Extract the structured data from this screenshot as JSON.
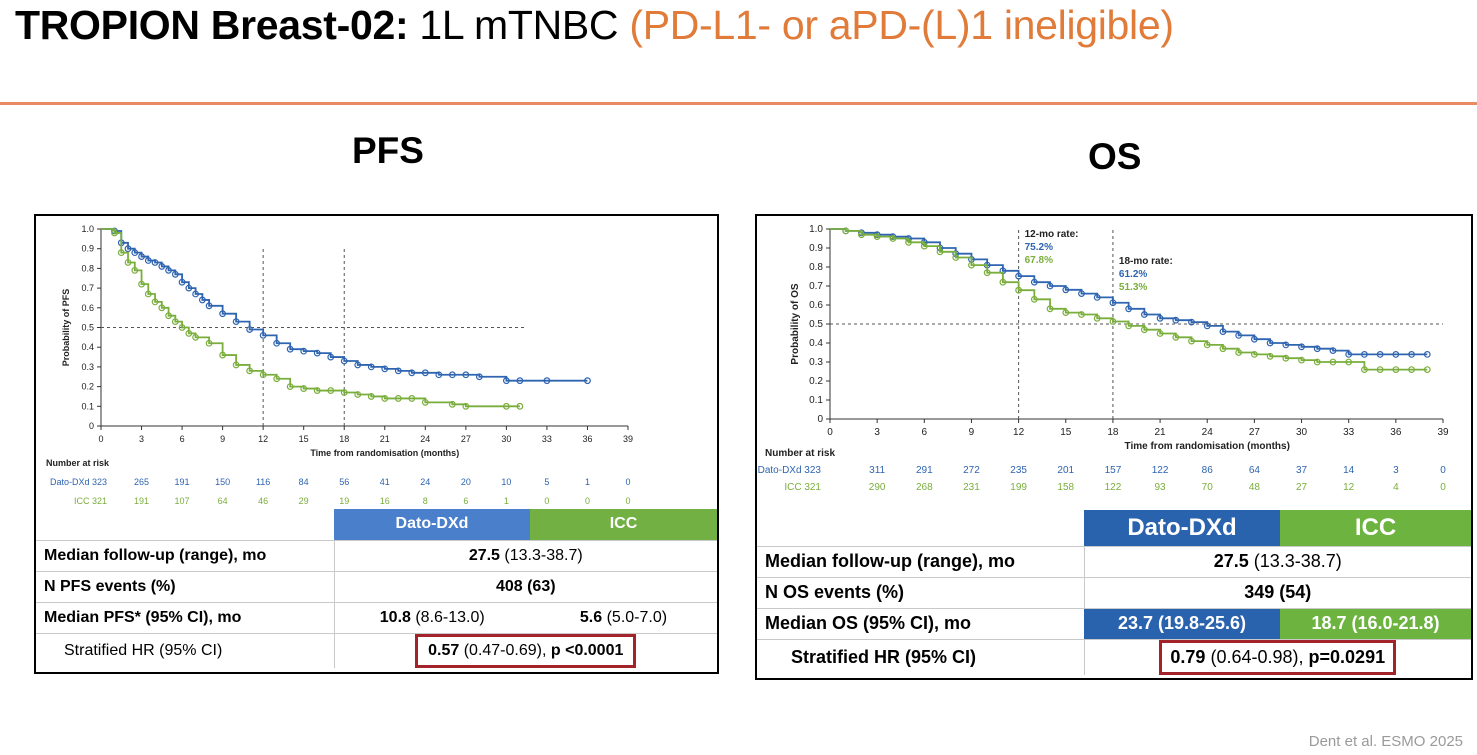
{
  "slide": {
    "title_bold": "TROPION Breast-02:",
    "title_regular": "1L mTNBC",
    "title_highlight": "(PD-L1- or aPD-(L)1 ineligible)",
    "highlight_color": "#e07b39",
    "citation": "Dent et al. ESMO 2025"
  },
  "colors": {
    "dato": "#2e64b0",
    "icc": "#7aae3c",
    "dato_header": "#4a7fcb",
    "icc_header": "#72b043",
    "os_dato_header": "#2a63ad",
    "os_icc_header": "#6cb33f",
    "hr_box": "#a3232b"
  },
  "pfs": {
    "panel_title": "PFS",
    "table": {
      "col_dato": "Dato-DXd",
      "col_icc": "ICC",
      "rows": [
        {
          "label": "Median follow-up (range), mo",
          "value_bold": "27.5",
          "value_rest": " (13.3-38.7)"
        },
        {
          "label": "N PFS events (%)",
          "value_bold": "408 (63)"
        },
        {
          "label": "Median PFS* (95% CI), mo",
          "dato_bold": "10.8",
          "dato_rest": " (8.6-13.0)",
          "icc_bold": "5.6",
          "icc_rest": " (5.0-7.0)"
        },
        {
          "label": "Stratified HR (95% CI)",
          "hr_bold": "0.57",
          "hr_rest": " (0.47-0.69),",
          "p_value": "p <0.0001"
        }
      ]
    }
  },
  "os": {
    "panel_title": "OS",
    "table": {
      "col_dato": "Dato-DXd",
      "col_icc": "ICC",
      "rows": [
        {
          "label": "Median follow-up (range), mo",
          "value_bold": "27.5",
          "value_rest": " (13.3-38.7)"
        },
        {
          "label": "N OS events (%)",
          "value_bold": "349 (54)"
        },
        {
          "label": "Median OS (95% CI), mo",
          "dato": "23.7 (19.8-25.6)",
          "icc": "18.7 (16.0-21.8)"
        },
        {
          "label": "Stratified HR (95% CI)",
          "hr_bold": "0.79",
          "hr_rest": " (0.64-0.98),",
          "p_value": "p=0.0291"
        }
      ]
    }
  },
  "chart_data": [
    {
      "type": "line",
      "id": "pfs",
      "title": "",
      "xlabel": "Time from randomisation (months)",
      "ylabel": "Probability of PFS",
      "xlim": [
        0,
        39
      ],
      "ylim": [
        0,
        1
      ],
      "x_ticks": [
        "0",
        "3",
        "6",
        "9",
        "12",
        "15",
        "18",
        "21",
        "24",
        "27",
        "30",
        "33",
        "36",
        "39"
      ],
      "y_ticks": [
        "0",
        "0.1",
        "0.2",
        "0.3",
        "0.4",
        "0.5",
        "0.6",
        "0.7",
        "0.8",
        "0.9",
        "1.0"
      ],
      "reference_y": 0.5,
      "reference_x": [
        12,
        18
      ],
      "series": [
        {
          "name": "Dato-DXd",
          "color": "#2e64b0",
          "x": [
            0,
            1,
            1.5,
            2,
            2.5,
            3,
            3.5,
            4,
            4.5,
            5,
            5.5,
            6,
            6.5,
            7,
            7.5,
            8,
            9,
            10,
            11,
            12,
            13,
            14,
            15,
            16,
            17,
            18,
            19,
            20,
            21,
            22,
            23,
            24,
            25,
            26,
            27,
            28,
            30,
            31,
            33,
            36
          ],
          "y": [
            1.0,
            0.99,
            0.93,
            0.9,
            0.88,
            0.86,
            0.84,
            0.83,
            0.81,
            0.79,
            0.77,
            0.73,
            0.7,
            0.67,
            0.64,
            0.61,
            0.57,
            0.53,
            0.49,
            0.46,
            0.42,
            0.39,
            0.38,
            0.37,
            0.35,
            0.33,
            0.31,
            0.3,
            0.29,
            0.28,
            0.27,
            0.27,
            0.26,
            0.26,
            0.26,
            0.25,
            0.23,
            0.23,
            0.23,
            0.23
          ]
        },
        {
          "name": "ICC",
          "color": "#7aae3c",
          "x": [
            0,
            1,
            1.5,
            2,
            2.5,
            3,
            3.5,
            4,
            4.5,
            5,
            5.5,
            6,
            6.5,
            7,
            8,
            9,
            10,
            11,
            12,
            13,
            14,
            15,
            16,
            17,
            18,
            19,
            20,
            21,
            22,
            23,
            24,
            26,
            27,
            30,
            31
          ],
          "y": [
            1.0,
            0.98,
            0.88,
            0.83,
            0.79,
            0.72,
            0.67,
            0.63,
            0.6,
            0.56,
            0.53,
            0.5,
            0.47,
            0.45,
            0.42,
            0.36,
            0.31,
            0.28,
            0.26,
            0.24,
            0.2,
            0.19,
            0.18,
            0.18,
            0.17,
            0.16,
            0.15,
            0.14,
            0.14,
            0.14,
            0.12,
            0.11,
            0.1,
            0.1,
            0.1
          ]
        }
      ],
      "risk_table": {
        "heading": "Number at risk",
        "rows": [
          {
            "name": "Dato-DXd",
            "n": "323",
            "values": [
              "265",
              "191",
              "150",
              "116",
              "84",
              "56",
              "41",
              "24",
              "20",
              "10",
              "5",
              "1",
              "0"
            ],
            "color": "#2e64b0"
          },
          {
            "name": "ICC",
            "n": "321",
            "values": [
              "191",
              "107",
              "64",
              "46",
              "29",
              "19",
              "16",
              "8",
              "6",
              "1",
              "0",
              "0",
              "0"
            ],
            "color": "#7aae3c"
          }
        ]
      }
    },
    {
      "type": "line",
      "id": "os",
      "title": "",
      "xlabel": "Time from randomisation (months)",
      "ylabel": "Probability of OS",
      "xlim": [
        0,
        39
      ],
      "ylim": [
        0,
        1
      ],
      "x_ticks": [
        "0",
        "3",
        "6",
        "9",
        "12",
        "15",
        "18",
        "21",
        "24",
        "27",
        "30",
        "33",
        "36",
        "39"
      ],
      "y_ticks": [
        "0",
        "0.1",
        "0.2",
        "0.3",
        "0.4",
        "0.5",
        "0.6",
        "0.7",
        "0.8",
        "0.9",
        "1.0"
      ],
      "reference_y": 0.5,
      "reference_x": [
        12,
        18
      ],
      "annotations": [
        {
          "x": 12,
          "title": "12-mo rate:",
          "dato": "75.2%",
          "icc": "67.8%"
        },
        {
          "x": 18,
          "title": "18-mo rate:",
          "dato": "61.2%",
          "icc": "51.3%"
        }
      ],
      "series": [
        {
          "name": "Dato-DXd",
          "color": "#2e64b0",
          "x": [
            0,
            1,
            2,
            3,
            4,
            5,
            6,
            7,
            8,
            9,
            10,
            11,
            12,
            13,
            14,
            15,
            16,
            17,
            18,
            19,
            20,
            21,
            22,
            23,
            24,
            25,
            26,
            27,
            28,
            29,
            30,
            31,
            32,
            33,
            34,
            35,
            36,
            37,
            38
          ],
          "y": [
            1.0,
            0.99,
            0.98,
            0.97,
            0.96,
            0.95,
            0.93,
            0.9,
            0.87,
            0.84,
            0.81,
            0.78,
            0.752,
            0.72,
            0.7,
            0.68,
            0.66,
            0.64,
            0.612,
            0.58,
            0.55,
            0.53,
            0.52,
            0.51,
            0.49,
            0.46,
            0.44,
            0.42,
            0.4,
            0.39,
            0.38,
            0.37,
            0.36,
            0.34,
            0.34,
            0.34,
            0.34,
            0.34,
            0.34
          ]
        },
        {
          "name": "ICC",
          "color": "#7aae3c",
          "x": [
            0,
            1,
            2,
            3,
            4,
            5,
            6,
            7,
            8,
            9,
            10,
            11,
            12,
            13,
            14,
            15,
            16,
            17,
            18,
            19,
            20,
            21,
            22,
            23,
            24,
            25,
            26,
            27,
            28,
            29,
            30,
            31,
            32,
            33,
            34,
            35,
            36,
            37,
            38
          ],
          "y": [
            1.0,
            0.99,
            0.97,
            0.96,
            0.95,
            0.93,
            0.91,
            0.88,
            0.85,
            0.81,
            0.77,
            0.72,
            0.678,
            0.63,
            0.58,
            0.56,
            0.55,
            0.53,
            0.513,
            0.49,
            0.47,
            0.45,
            0.43,
            0.41,
            0.39,
            0.37,
            0.35,
            0.34,
            0.33,
            0.32,
            0.31,
            0.3,
            0.3,
            0.3,
            0.26,
            0.26,
            0.26,
            0.26,
            0.26
          ]
        }
      ],
      "risk_table": {
        "heading": "Number at risk",
        "rows": [
          {
            "name": "Dato-DXd",
            "n": "323",
            "values": [
              "311",
              "291",
              "272",
              "235",
              "201",
              "157",
              "122",
              "86",
              "64",
              "37",
              "14",
              "3",
              "0"
            ],
            "color": "#2e64b0"
          },
          {
            "name": "ICC",
            "n": "321",
            "values": [
              "290",
              "268",
              "231",
              "199",
              "158",
              "122",
              "93",
              "70",
              "48",
              "27",
              "12",
              "4",
              "0"
            ],
            "color": "#7aae3c"
          }
        ]
      }
    }
  ]
}
